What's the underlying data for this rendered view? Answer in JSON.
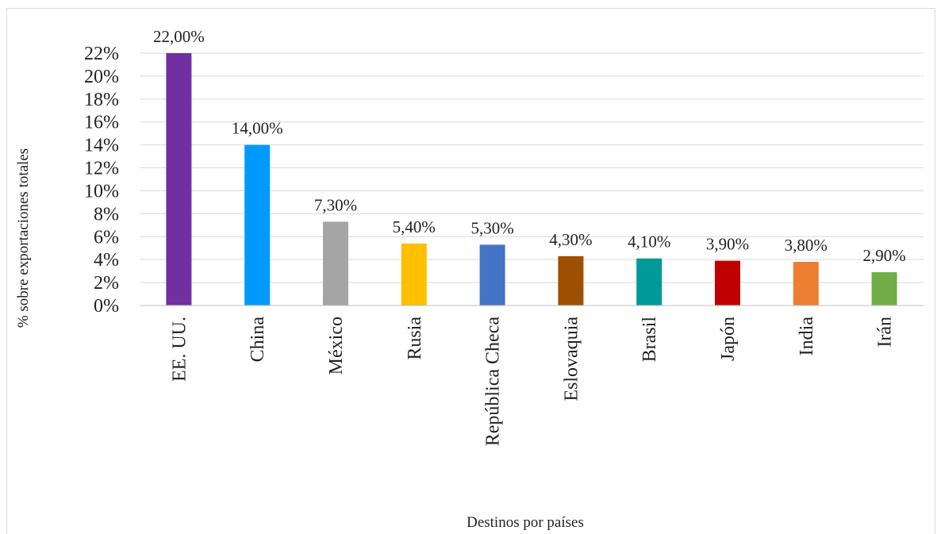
{
  "chart_data": {
    "type": "bar",
    "categories": [
      "EE. UU.",
      "China",
      "México",
      "Rusia",
      "República Checa",
      "Eslovaquia",
      "Brasil",
      "Japón",
      "India",
      "Irán"
    ],
    "values": [
      22.0,
      14.0,
      7.3,
      5.4,
      5.3,
      4.3,
      4.1,
      3.9,
      3.8,
      2.9
    ],
    "data_labels": [
      "22,00%",
      "14,00%",
      "7,30%",
      "5,40%",
      "5,30%",
      "4,30%",
      "4,10%",
      "3,90%",
      "3,80%",
      "2,90%"
    ],
    "colors": [
      "#7030A0",
      "#0099FF",
      "#A5A5A5",
      "#FFC000",
      "#4472C4",
      "#9C5000",
      "#009999",
      "#C00000",
      "#ED7D31",
      "#70AD47"
    ],
    "y_ticks": [
      "0%",
      "2%",
      "4%",
      "6%",
      "8%",
      "10%",
      "12%",
      "14%",
      "16%",
      "18%",
      "20%",
      "22%"
    ],
    "ylim": [
      0,
      22
    ],
    "xlabel": "Destinos por países",
    "ylabel": "% sobre exportaciones totales",
    "grid": true,
    "legend": "none"
  }
}
